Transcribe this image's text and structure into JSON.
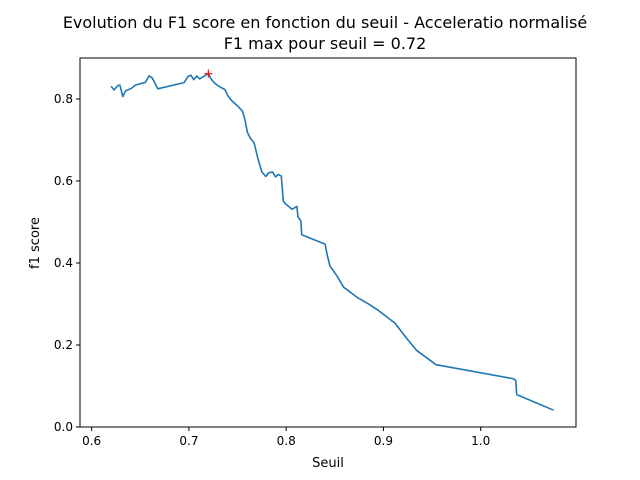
{
  "chart_data": {
    "type": "line",
    "title": "Evolution du F1 score en fonction du seuil - Acceleratio normalisé",
    "subtitle": "F1 max pour seuil = 0.72",
    "xlabel": "Seuil",
    "ylabel": "f1 score",
    "xlim": [
      0.588,
      1.098
    ],
    "ylim": [
      0.0,
      0.9
    ],
    "xticks": [
      0.6,
      0.7,
      0.8,
      0.9,
      1.0
    ],
    "xtick_labels": [
      "0.6",
      "0.7",
      "0.8",
      "0.9",
      "1.0"
    ],
    "yticks": [
      0.0,
      0.2,
      0.4,
      0.6,
      0.8
    ],
    "ytick_labels": [
      "0.0",
      "0.2",
      "0.4",
      "0.6",
      "0.8"
    ],
    "grid": false,
    "line_color": "#1f77b4",
    "marker_color": "#d62728",
    "series": [
      {
        "x": [
          0.62,
          0.623,
          0.627,
          0.629,
          0.632,
          0.635,
          0.641,
          0.645,
          0.651,
          0.655,
          0.659,
          0.662,
          0.664,
          0.668,
          0.695,
          0.699,
          0.702,
          0.705,
          0.708,
          0.711,
          0.715,
          0.72,
          0.723,
          0.726,
          0.729,
          0.733,
          0.737,
          0.74,
          0.744,
          0.75,
          0.755,
          0.758,
          0.76,
          0.763,
          0.767,
          0.771,
          0.775,
          0.779,
          0.782,
          0.786,
          0.789,
          0.792,
          0.795,
          0.797,
          0.799,
          0.806,
          0.811,
          0.812,
          0.815,
          0.816,
          0.84,
          0.842,
          0.845,
          0.852,
          0.859,
          0.873,
          0.884,
          0.895,
          0.912,
          0.923,
          0.934,
          0.954,
          1.033,
          1.036,
          1.037,
          1.075
        ],
        "y": [
          0.831,
          0.822,
          0.833,
          0.834,
          0.806,
          0.82,
          0.826,
          0.834,
          0.838,
          0.84,
          0.856,
          0.852,
          0.844,
          0.825,
          0.84,
          0.855,
          0.858,
          0.847,
          0.856,
          0.849,
          0.855,
          0.862,
          0.848,
          0.84,
          0.834,
          0.828,
          0.823,
          0.808,
          0.796,
          0.783,
          0.771,
          0.746,
          0.719,
          0.705,
          0.693,
          0.654,
          0.622,
          0.611,
          0.62,
          0.622,
          0.61,
          0.616,
          0.612,
          0.551,
          0.545,
          0.531,
          0.538,
          0.513,
          0.503,
          0.469,
          0.446,
          0.422,
          0.393,
          0.369,
          0.341,
          0.316,
          0.301,
          0.284,
          0.253,
          0.219,
          0.187,
          0.152,
          0.118,
          0.114,
          0.079,
          0.041
        ]
      }
    ],
    "max_point": {
      "x": 0.72,
      "y": 0.862
    }
  }
}
